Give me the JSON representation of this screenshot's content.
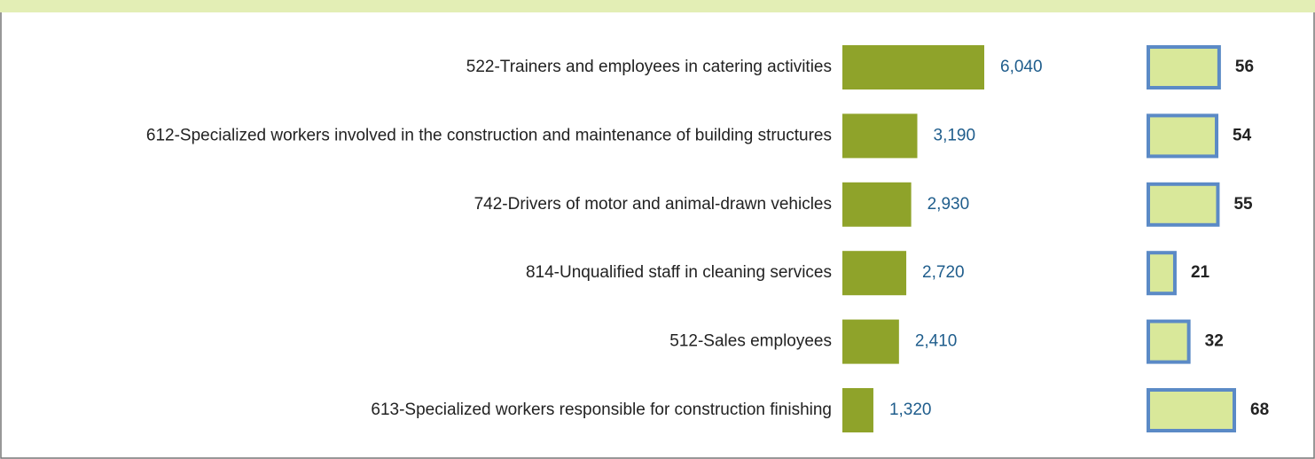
{
  "chart_data": {
    "type": "bar",
    "orientation": "horizontal",
    "categories": [
      "522-Trainers and employees in catering activities",
      "612-Specialized workers involved in the construction and maintenance of building structures",
      "742-Drivers of motor and animal-drawn vehicles",
      "814-Unqualified staff in cleaning services",
      "512-Sales employees",
      "613-Specialized workers responsible for construction finishing"
    ],
    "series": [
      {
        "color": "#8fa32a",
        "values": [
          6040,
          3190,
          2930,
          2720,
          2410,
          1320
        ],
        "value_labels": [
          "6,040",
          "3,190",
          "2,930",
          "2,720",
          "2,410",
          "1,320"
        ]
      },
      {
        "color": "#d9e89a",
        "edge_color": "#5b8ac6",
        "values": [
          56,
          54,
          55,
          21,
          32,
          68
        ]
      }
    ]
  }
}
